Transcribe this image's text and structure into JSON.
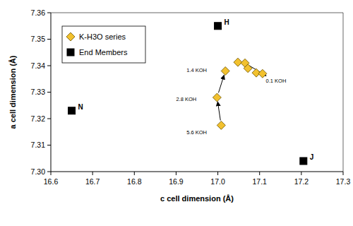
{
  "chart_data": {
    "type": "scatter",
    "x_label": "c cell dimension (Å)",
    "y_label": "a cell dimension (Å)",
    "xlim": [
      16.6,
      17.3
    ],
    "ylim": [
      7.3,
      7.36
    ],
    "xticks": [
      16.6,
      16.7,
      16.8,
      16.9,
      {
        "value": 17,
        "label": "17.0"
      },
      17.1,
      17.2,
      17.3
    ],
    "yticks": [
      {
        "value": 7.3,
        "label": "7.30"
      },
      7.31,
      7.32,
      7.33,
      7.34,
      7.35,
      7.36
    ],
    "grid": false,
    "legend": "top-left",
    "series": [
      {
        "name": "K-H3O series",
        "color": "#f2c12e",
        "marker": "diamond",
        "x": [
          17.008,
          16.998,
          17.018,
          17.048,
          17.065,
          17.072,
          17.092,
          17.107
        ],
        "values": [
          7.3175,
          7.328,
          7.338,
          7.3413,
          7.341,
          7.339,
          7.3373,
          7.337
        ]
      },
      {
        "name": "End Members",
        "color": "#000000",
        "marker": "square",
        "x": [
          16.65,
          17.0,
          17.205
        ],
        "values": [
          7.323,
          7.355,
          7.304
        ],
        "point_labels": [
          "N",
          "H",
          "J"
        ]
      }
    ],
    "annotations": [
      {
        "text": "5.6 KOH",
        "x": 16.925,
        "y": 7.315
      },
      {
        "text": "2.8 KOH",
        "x": 16.9,
        "y": 7.3275
      },
      {
        "text": "1.4 KOH",
        "x": 16.925,
        "y": 7.3385
      },
      {
        "text": "0.1 KOH",
        "x": 17.115,
        "y": 7.3345
      }
    ]
  }
}
